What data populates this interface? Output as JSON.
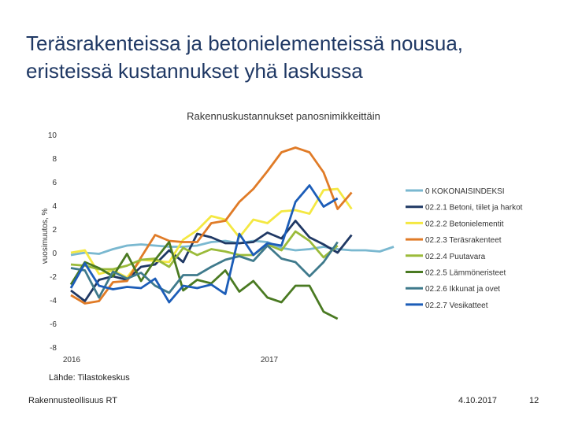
{
  "slide": {
    "title": "Teräsrakenteissa ja betonielementeissä nousua, eristeissä kustannukset yhä laskussa",
    "source": "Lähde: Tilastokeskus",
    "footer_org": "Rakennusteollisuus RT",
    "footer_date": "4.10.2017",
    "page_number": "12"
  },
  "chart_data": {
    "type": "line",
    "title": "Rakennuskustannukset panosnimikkeittäin",
    "ylabel": "vuosimuutos, %",
    "xlabel": "",
    "ylim": [
      -8,
      10
    ],
    "yticks": [
      "10",
      "8",
      "6",
      "4",
      "2",
      "0",
      "-2",
      "-4",
      "-6",
      "-8"
    ],
    "x_tick_labels": [
      "2016",
      "2017"
    ],
    "grid": false,
    "legend_position": "right",
    "series": [
      {
        "name": "0 KOKONAISINDEKSI",
        "color": "#7ab8d0",
        "values": [
          -0.2,
          0.0,
          -0.1,
          0.3,
          0.6,
          0.7,
          0.6,
          0.5,
          0.5,
          0.6,
          0.9,
          1.0,
          0.8,
          1.0,
          0.9,
          0.4,
          0.2,
          0.3,
          0.5,
          0.3,
          0.2,
          0.2,
          0.1,
          0.5
        ]
      },
      {
        "name": "02.2.1 Betoni, tiilet ja harkot",
        "color": "#1f3864",
        "values": [
          -3.2,
          -4.1,
          -2.3,
          -2.0,
          -2.3,
          -1.2,
          -1.0,
          0.2,
          -0.8,
          1.6,
          1.3,
          0.8,
          0.8,
          0.9,
          1.7,
          1.2,
          2.7,
          1.3,
          0.7,
          0.0,
          1.5
        ]
      },
      {
        "name": "02.2.2 Betonielementit",
        "color": "#f4e842",
        "values": [
          0.0,
          0.2,
          -1.8,
          -1.5,
          -2.1,
          -0.6,
          -0.7,
          -0.8,
          1.1,
          1.9,
          3.1,
          2.8,
          1.3,
          2.8,
          2.5,
          3.5,
          3.6,
          3.3,
          5.3,
          5.4,
          3.7
        ]
      },
      {
        "name": "02.2.3 Teräsrakenteet",
        "color": "#e07b27",
        "values": [
          -3.6,
          -4.3,
          -4.1,
          -2.5,
          -2.4,
          -0.4,
          1.5,
          1.0,
          0.9,
          0.9,
          2.5,
          2.7,
          4.3,
          5.4,
          6.9,
          8.5,
          8.9,
          8.5,
          6.8,
          3.7,
          5.1
        ]
      },
      {
        "name": "02.2.4 Puutavara",
        "color": "#9bbb3a",
        "values": [
          -1.0,
          -1.1,
          -1.4,
          -1.4,
          -1.1,
          -0.6,
          -0.5,
          -1.2,
          0.4,
          -0.2,
          0.3,
          0.1,
          -0.2,
          -0.2,
          0.7,
          0.2,
          1.8,
          1.0,
          -0.4,
          0.6
        ]
      },
      {
        "name": "02.2.5 Lämmöneristeet",
        "color": "#4a7a22",
        "values": [
          -2.7,
          -0.8,
          -1.3,
          -2.0,
          -0.1,
          -2.4,
          -0.6,
          0.9,
          -3.2,
          -2.3,
          -2.6,
          -1.5,
          -3.3,
          -2.4,
          -3.8,
          -4.2,
          -2.8,
          -2.8,
          -5.0,
          -5.6
        ]
      },
      {
        "name": "02.2.6 Ikkunat ja ovet",
        "color": "#3f7a8c",
        "values": [
          -1.3,
          -1.5,
          -3.8,
          -1.6,
          -2.2,
          -1.7,
          -2.8,
          -3.4,
          -1.9,
          -1.9,
          -1.2,
          -0.6,
          -0.3,
          -0.7,
          0.6,
          -0.5,
          -0.8,
          -2.0,
          -0.8,
          0.9
        ]
      },
      {
        "name": "02.2.7 Vesikatteet",
        "color": "#1c5db8",
        "values": [
          -3.0,
          -0.9,
          -2.8,
          -3.1,
          -2.9,
          -3.0,
          -2.2,
          -4.2,
          -2.8,
          -3.0,
          -2.7,
          -3.5,
          1.6,
          -0.2,
          0.8,
          0.6,
          4.3,
          5.7,
          3.9,
          4.6
        ]
      }
    ]
  }
}
